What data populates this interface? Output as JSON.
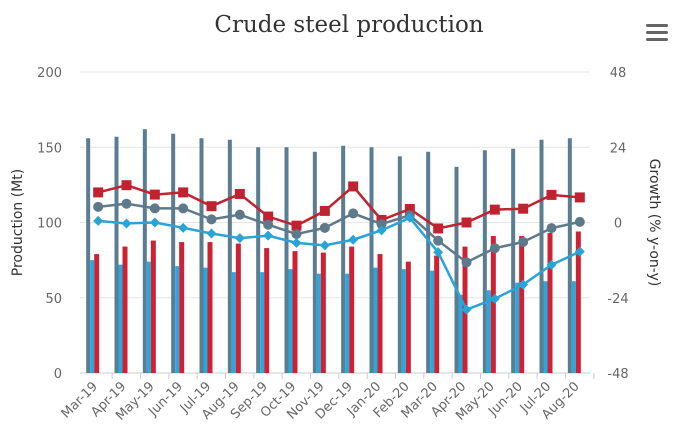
{
  "title": "Crude steel production",
  "menu_icon": "hamburger-menu-icon",
  "chart_data": {
    "type": "bar",
    "title": "Crude steel production",
    "categories": [
      "Mar-19",
      "Apr-19",
      "May-19",
      "Jun-19",
      "Jul-19",
      "Aug-19",
      "Sep-19",
      "Oct-19",
      "Nov-19",
      "Dec-19",
      "Jan-20",
      "Feb-20",
      "Mar-20",
      "Apr-20",
      "May-20",
      "Jun-20",
      "Jul-20",
      "Aug-20"
    ],
    "left_axis": {
      "label": "Production (Mt)",
      "ylim": [
        0,
        200
      ],
      "ticks": [
        "0",
        "50",
        "100",
        "150",
        "200"
      ]
    },
    "right_axis": {
      "label": "Growth (% y-on-y)",
      "ylim": [
        -48,
        48
      ],
      "ticks": [
        "-48",
        "-24",
        "0",
        "24",
        "48"
      ]
    },
    "grid": "horizontal",
    "bar_series": [
      {
        "color": "#5a7d92",
        "values": [
          156,
          157,
          162,
          159,
          156,
          155,
          150,
          150,
          147,
          151,
          150,
          144,
          147,
          137,
          148,
          149,
          155,
          156
        ]
      },
      {
        "color": "#29a8dd",
        "values": [
          75,
          72,
          74,
          71,
          70,
          67,
          67,
          69,
          66,
          66,
          70,
          69,
          68,
          52,
          55,
          60,
          61,
          61
        ]
      },
      {
        "color": "#cc2233",
        "values": [
          79,
          84,
          88,
          87,
          87,
          86,
          83,
          81,
          80,
          84,
          79,
          74,
          78,
          84,
          91,
          91,
          93,
          94
        ]
      }
    ],
    "line_series": [
      {
        "color": "#c0232f",
        "marker": "square",
        "values": [
          9.6,
          11.9,
          8.9,
          9.6,
          5.2,
          9.1,
          1.9,
          -1.0,
          3.7,
          11.5,
          0.8,
          4.3,
          -1.9,
          0.0,
          4.1,
          4.4,
          8.8,
          8.0
        ]
      },
      {
        "color": "#5e7a8a",
        "marker": "circle",
        "values": [
          5.0,
          6.0,
          4.5,
          4.5,
          1.0,
          2.5,
          -0.7,
          -3.7,
          -1.7,
          2.9,
          -0.5,
          2.3,
          -5.8,
          -12.7,
          -8.2,
          -6.2,
          -1.8,
          0.2
        ]
      },
      {
        "color": "#2aa3d6",
        "marker": "diamond",
        "values": [
          0.5,
          -0.3,
          0.0,
          -1.7,
          -3.5,
          -5.0,
          -4.2,
          -6.5,
          -7.3,
          -5.5,
          -2.5,
          1.5,
          -9.5,
          -27.8,
          -24.3,
          -19.8,
          -13.5,
          -9.3
        ]
      }
    ]
  }
}
